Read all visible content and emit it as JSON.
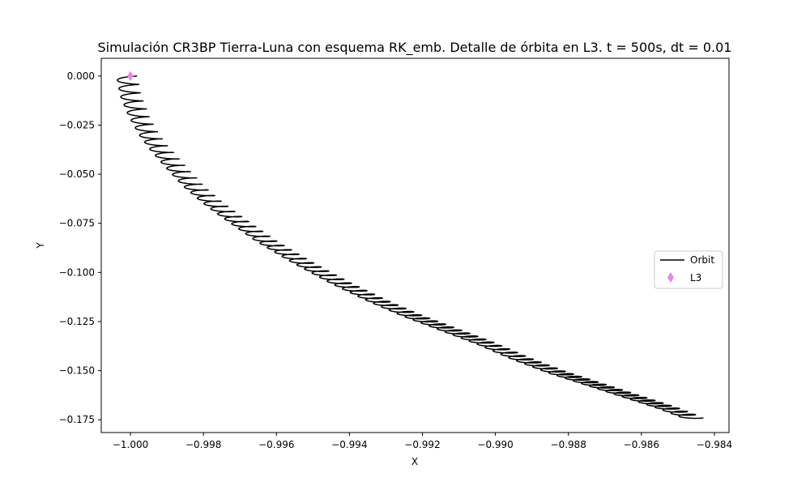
{
  "chart_data": {
    "type": "line",
    "title": "Simulación CR3BP Tierra-Luna con esquema RK_emb. Detalle de órbita en L3. t = 500s, dt = 0.01",
    "xlabel": "X",
    "ylabel": "Y",
    "xlim": [
      -1.0008,
      -0.9836
    ],
    "ylim": [
      -0.1815,
      0.009
    ],
    "xticks": [
      -1.0,
      -0.998,
      -0.996,
      -0.994,
      -0.992,
      -0.99,
      -0.988,
      -0.986,
      -0.984
    ],
    "xtick_labels": [
      "−1.000",
      "−0.998",
      "−0.996",
      "−0.994",
      "−0.992",
      "−0.990",
      "−0.988",
      "−0.986",
      "−0.984"
    ],
    "yticks": [
      0.0,
      -0.025,
      -0.05,
      -0.075,
      -0.1,
      -0.125,
      -0.15,
      -0.175
    ],
    "ytick_labels": [
      "0.000",
      "−0.025",
      "−0.050",
      "−0.075",
      "−0.100",
      "−0.125",
      "−0.150",
      "−0.175"
    ],
    "grid": false,
    "legend_position": "center-right",
    "series": [
      {
        "name": "Orbit",
        "kind": "line",
        "color": "#000000",
        "guiding_path": {
          "x": [
            -0.99982,
            -0.99972,
            -0.9995,
            -0.9992,
            -0.9989,
            -0.9985,
            -0.998,
            -0.9975,
            -0.997,
            -0.9965,
            -0.996,
            -0.995,
            -0.994,
            -0.993,
            -0.992,
            -0.991,
            -0.99,
            -0.989,
            -0.988,
            -0.987,
            -0.986,
            -0.985,
            -0.9843
          ],
          "y": [
            0.0,
            -0.01,
            -0.02,
            -0.03,
            -0.0375,
            -0.046,
            -0.056,
            -0.064,
            -0.071,
            -0.0775,
            -0.084,
            -0.095,
            -0.105,
            -0.114,
            -0.122,
            -0.129,
            -0.136,
            -0.144,
            -0.151,
            -0.157,
            -0.163,
            -0.169,
            -0.174
          ]
        },
        "loops": 80,
        "loop_amplitude_x": 0.00028,
        "loop_amplitude_y": 0.0012
      },
      {
        "name": "L3",
        "kind": "marker",
        "marker": "diamond",
        "color": "#ee82ee",
        "x": [
          -1.0
        ],
        "y": [
          0.0
        ]
      }
    ]
  }
}
